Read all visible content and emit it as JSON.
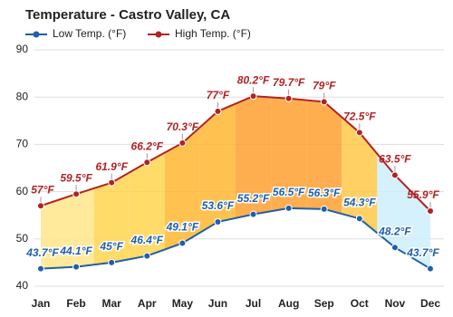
{
  "chart_data": {
    "type": "line",
    "title": "Temperature - Castro Valley, CA",
    "categories": [
      "Jan",
      "Feb",
      "Mar",
      "Apr",
      "May",
      "Jun",
      "Jul",
      "Aug",
      "Sep",
      "Oct",
      "Nov",
      "Dec"
    ],
    "series": [
      {
        "name": "Low Temp. (°F)",
        "color": "#1f5fa8",
        "values": [
          43.7,
          44.1,
          45,
          46.4,
          49.1,
          53.6,
          55.2,
          56.5,
          56.3,
          54.3,
          48.2,
          43.7
        ],
        "value_labels": [
          "43.7°F",
          "44.1°F",
          "45°F",
          "46.4°F",
          "49.1°F",
          "53.6°F",
          "55.2°F",
          "56.5°F",
          "56.3°F",
          "54.3°F",
          "48.2°F",
          "43.7°F"
        ]
      },
      {
        "name": "High Temp. (°F)",
        "color": "#b22222",
        "values": [
          57,
          59.5,
          61.9,
          66.2,
          70.3,
          77,
          80.2,
          79.7,
          79,
          72.5,
          63.5,
          55.9
        ],
        "value_labels": [
          "57°F",
          "59.5°F",
          "61.9°F",
          "66.2°F",
          "70.3°F",
          "77°F",
          "80.2°F",
          "79.7°F",
          "79°F",
          "72.5°F",
          "63.5°F",
          "55.9°F"
        ]
      }
    ],
    "fill_colors": [
      "#ffe58a",
      "#ffe58a",
      "#ffd54f",
      "#ffd54f",
      "#ffb733",
      "#ffb733",
      "#ffa030",
      "#ffa030",
      "#ffa030",
      "#ffc94a",
      "#cdeefc",
      "#cdeefc"
    ],
    "ylim": [
      40,
      90
    ],
    "yticks": [
      40,
      50,
      60,
      70,
      80,
      90
    ],
    "grid": true
  }
}
